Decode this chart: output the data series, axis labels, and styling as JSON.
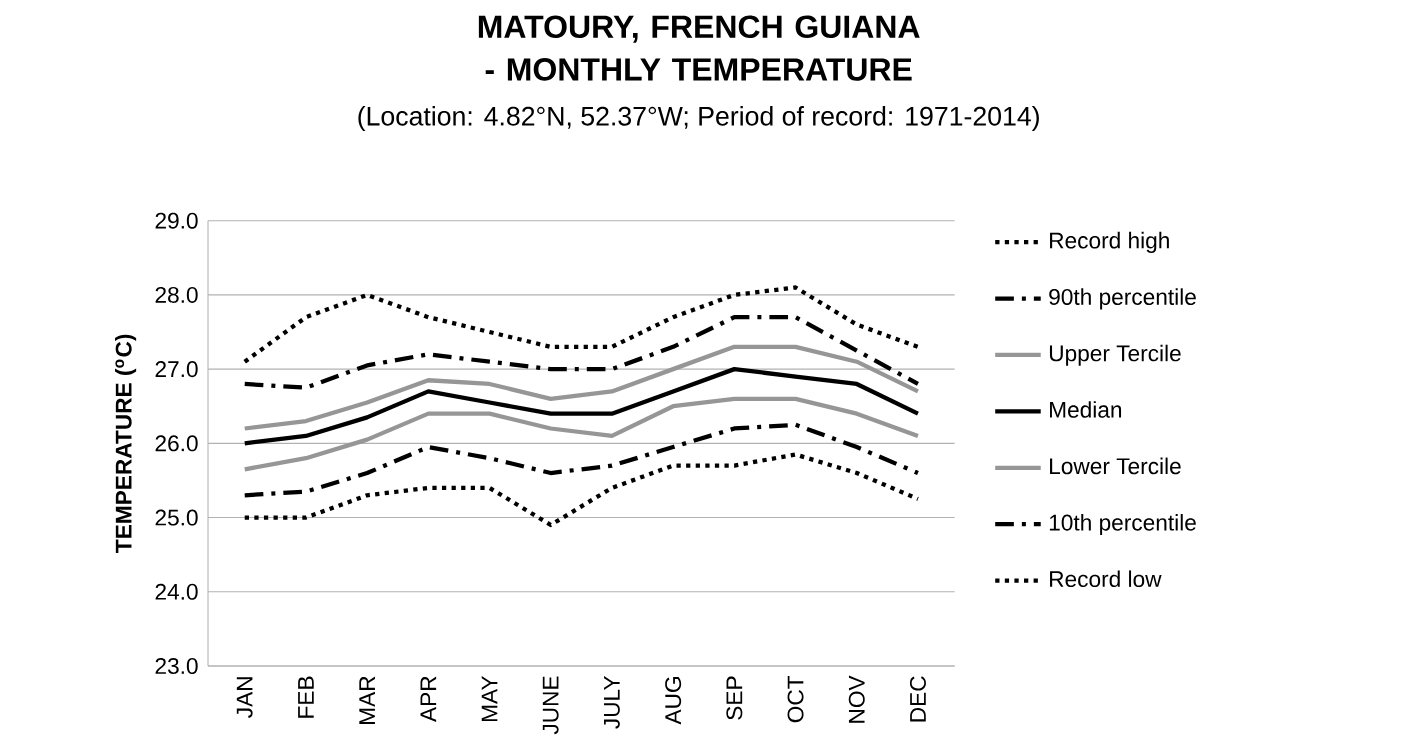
{
  "chart_data": {
    "type": "line",
    "title": "MATOURY, FRENCH GUIANA - MONTHLY TEMPERATURE",
    "subtitle": "(Location: 4.82°N, 52.37°W; Period of record: 1971-2014)",
    "ylabel": "TEMPERATURE ($^{o}$C)",
    "categories": [
      "JAN",
      "FEB",
      "MAR",
      "APR",
      "MAY",
      "JUNE",
      "JULY",
      "AUG",
      "SEP",
      "OCT",
      "NOV",
      "DEC"
    ],
    "series": [
      {
        "name": "Record high",
        "color": "#000000",
        "line_style": "dotted",
        "values": [
          27.1,
          27.7,
          28.0,
          27.7,
          27.5,
          27.3,
          27.3,
          27.7,
          28.0,
          28.1,
          27.6,
          27.3
        ]
      },
      {
        "name": "90th percentile",
        "color": "#000000",
        "line_style": "dashdot",
        "values": [
          26.8,
          26.75,
          27.05,
          27.2,
          27.1,
          27.0,
          27.0,
          27.3,
          27.7,
          27.7,
          27.25,
          26.8
        ]
      },
      {
        "name": "Upper Tercile",
        "color": "#969696",
        "line_style": "solid",
        "values": [
          26.2,
          26.3,
          26.55,
          26.85,
          26.8,
          26.6,
          26.7,
          27.0,
          27.3,
          27.3,
          27.1,
          26.7
        ]
      },
      {
        "name": "Median",
        "color": "#000000",
        "line_style": "solid",
        "values": [
          26.0,
          26.1,
          26.35,
          26.7,
          26.55,
          26.4,
          26.4,
          26.7,
          27.0,
          26.9,
          26.8,
          26.4
        ]
      },
      {
        "name": "Lower Tercile",
        "color": "#969696",
        "line_style": "solid",
        "values": [
          25.65,
          25.8,
          26.05,
          26.4,
          26.4,
          26.2,
          26.1,
          26.5,
          26.6,
          26.6,
          26.4,
          26.1
        ]
      },
      {
        "name": "10th percentile",
        "color": "#000000",
        "line_style": "dashdot",
        "values": [
          25.3,
          25.35,
          25.6,
          25.95,
          25.8,
          25.6,
          25.7,
          25.95,
          26.2,
          26.25,
          25.95,
          25.6
        ]
      },
      {
        "name": "Record low",
        "color": "#000000",
        "line_style": "dotted",
        "values": [
          25.0,
          25.0,
          25.3,
          25.4,
          25.4,
          24.9,
          25.4,
          25.7,
          25.7,
          25.85,
          25.6,
          25.25
        ]
      }
    ],
    "ylim": [
      23,
      29
    ],
    "yticks": [
      {
        "value": 23,
        "label": "23.0"
      },
      {
        "value": 24,
        "label": "24.0"
      },
      {
        "value": 25,
        "label": "25.0"
      },
      {
        "value": 26,
        "label": "26.0"
      },
      {
        "value": 27,
        "label": "27.0"
      },
      {
        "value": 28,
        "label": "28.0"
      },
      {
        "value": 29,
        "label": "29.0"
      }
    ],
    "grid": "y",
    "legend": "right"
  }
}
